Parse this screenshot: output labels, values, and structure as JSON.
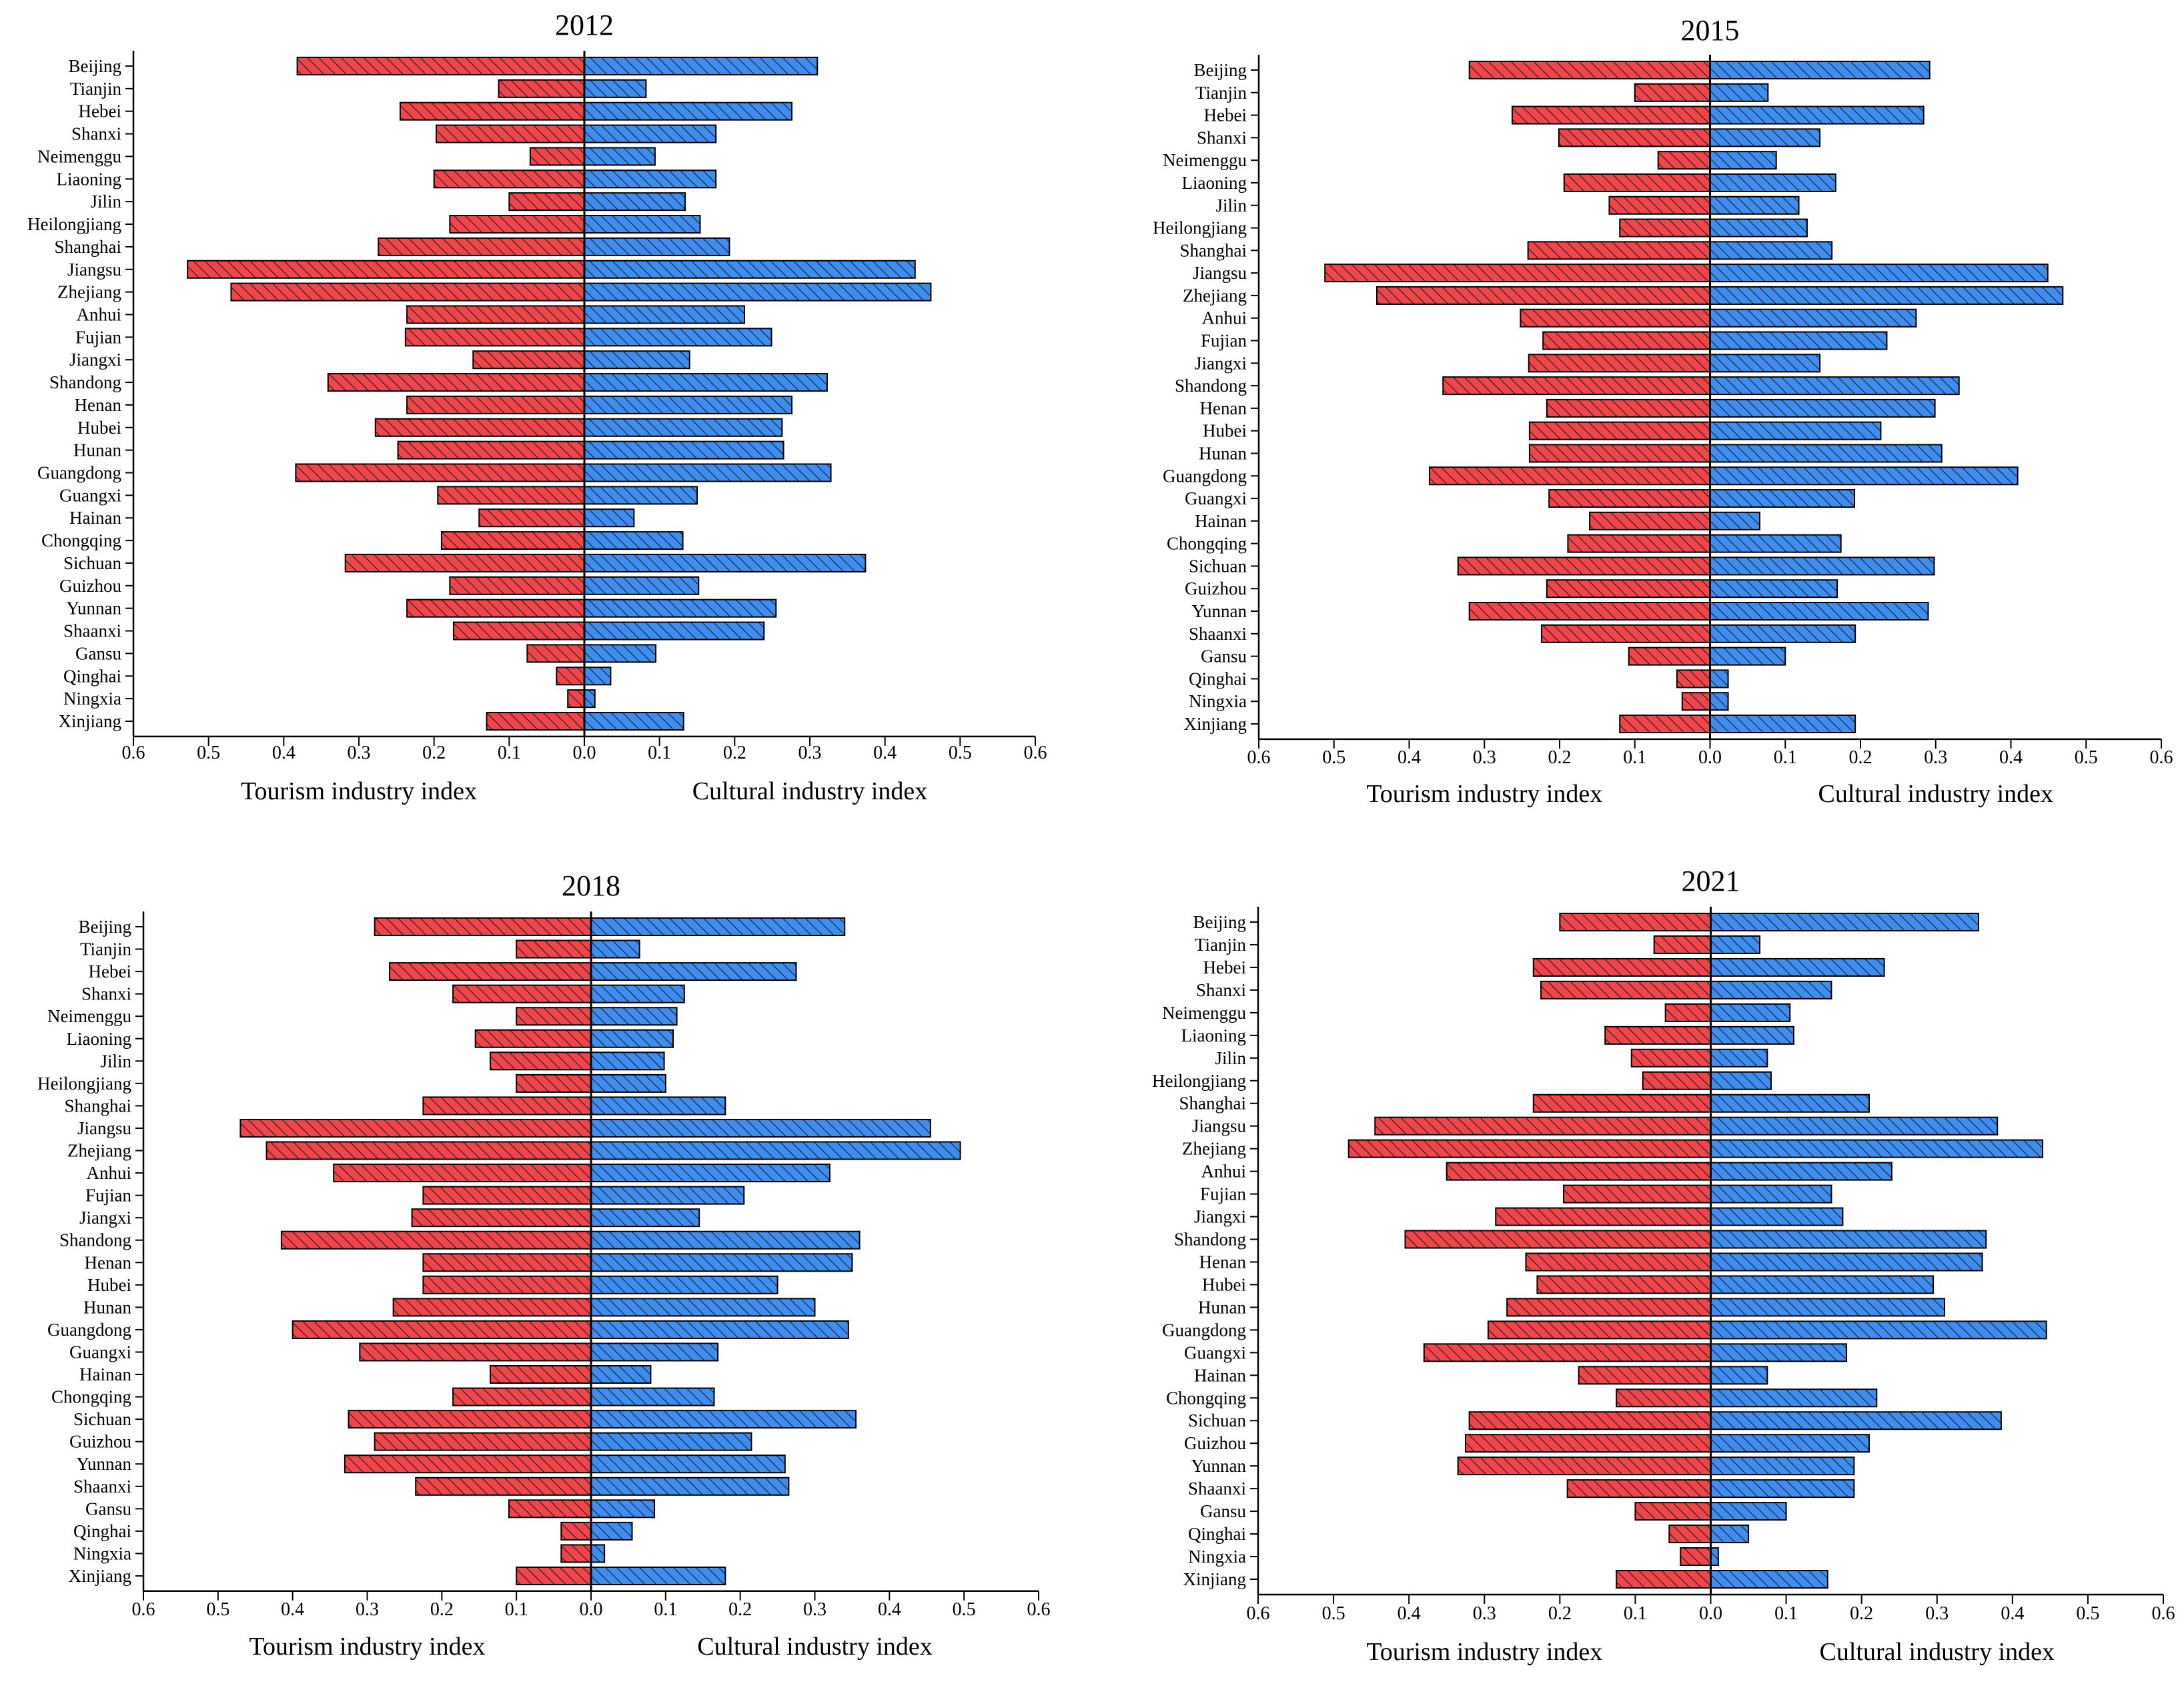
{
  "colors": {
    "tourism": "#f0454a",
    "cultural": "#3e8ef1",
    "outline": "#000000",
    "hatch": "#1a1a1a"
  },
  "chart_data": [
    {
      "type": "bar",
      "title": "2012",
      "categories": [
        "Beijing",
        "Tianjin",
        "Hebei",
        "Shanxi",
        "Neimenggu",
        "Liaoning",
        "Jilin",
        "Heilongjiang",
        "Shanghai",
        "Jiangsu",
        "Zhejiang",
        "Anhui",
        "Fujian",
        "Jiangxi",
        "Shandong",
        "Henan",
        "Hubei",
        "Hunan",
        "Guangdong",
        "Guangxi",
        "Hainan",
        "Chongqing",
        "Sichuan",
        "Guizhou",
        "Yunnan",
        "Shaanxi",
        "Gansu",
        "Qinghai",
        "Ningxia",
        "Xinjiang"
      ],
      "series": [
        {
          "name": "Tourism industry index",
          "values": [
            0.382,
            0.114,
            0.245,
            0.197,
            0.072,
            0.2,
            0.1,
            0.179,
            0.274,
            0.528,
            0.47,
            0.236,
            0.238,
            0.148,
            0.341,
            0.236,
            0.278,
            0.248,
            0.384,
            0.195,
            0.14,
            0.19,
            0.318,
            0.179,
            0.236,
            0.174,
            0.076,
            0.037,
            0.022,
            0.13
          ]
        },
        {
          "name": "Cultural industry index",
          "values": [
            0.31,
            0.082,
            0.276,
            0.175,
            0.094,
            0.175,
            0.134,
            0.154,
            0.193,
            0.44,
            0.461,
            0.213,
            0.249,
            0.14,
            0.323,
            0.276,
            0.263,
            0.265,
            0.328,
            0.15,
            0.066,
            0.131,
            0.374,
            0.152,
            0.255,
            0.239,
            0.095,
            0.035,
            0.014,
            0.132
          ]
        }
      ],
      "xticks": [
        "0.6",
        "0.5",
        "0.4",
        "0.3",
        "0.2",
        "0.1",
        "0.0",
        "0.1",
        "0.2",
        "0.3",
        "0.4",
        "0.5",
        "0.6"
      ],
      "xlabel_left": "Tourism industry index",
      "xlabel_right": "Cultural industry index",
      "xlim": [
        -0.6,
        0.6
      ]
    },
    {
      "type": "bar",
      "title": "2015",
      "categories": [
        "Beijing",
        "Tianjin",
        "Hebei",
        "Shanxi",
        "Neimenggu",
        "Liaoning",
        "Jilin",
        "Heilongjiang",
        "Shanghai",
        "Jiangsu",
        "Zhejiang",
        "Anhui",
        "Fujian",
        "Jiangxi",
        "Shandong",
        "Henan",
        "Hubei",
        "Hunan",
        "Guangdong",
        "Guangxi",
        "Hainan",
        "Chongqing",
        "Sichuan",
        "Guizhou",
        "Yunnan",
        "Shaanxi",
        "Gansu",
        "Qinghai",
        "Ningxia",
        "Xinjiang"
      ],
      "series": [
        {
          "name": "Tourism industry index",
          "values": [
            0.32,
            0.1,
            0.263,
            0.201,
            0.069,
            0.194,
            0.134,
            0.12,
            0.242,
            0.512,
            0.443,
            0.252,
            0.222,
            0.241,
            0.355,
            0.217,
            0.24,
            0.24,
            0.373,
            0.214,
            0.16,
            0.189,
            0.335,
            0.217,
            0.32,
            0.224,
            0.108,
            0.044,
            0.037,
            0.12
          ]
        },
        {
          "name": "Cultural industry index",
          "values": [
            0.292,
            0.077,
            0.284,
            0.146,
            0.088,
            0.167,
            0.118,
            0.129,
            0.162,
            0.449,
            0.469,
            0.274,
            0.235,
            0.146,
            0.331,
            0.299,
            0.227,
            0.308,
            0.409,
            0.192,
            0.066,
            0.174,
            0.298,
            0.169,
            0.29,
            0.193,
            0.1,
            0.024,
            0.024,
            0.193
          ]
        }
      ],
      "xticks": [
        "0.6",
        "0.5",
        "0.4",
        "0.3",
        "0.2",
        "0.1",
        "0.0",
        "0.1",
        "0.2",
        "0.3",
        "0.4",
        "0.5",
        "0.6"
      ],
      "xlabel_left": "Tourism industry index",
      "xlabel_right": "Cultural industry index",
      "xlim": [
        -0.6,
        0.6
      ]
    },
    {
      "type": "bar",
      "title": "2018",
      "categories": [
        "Beijing",
        "Tianjin",
        "Hebei",
        "Shanxi",
        "Neimenggu",
        "Liaoning",
        "Jilin",
        "Heilongjiang",
        "Shanghai",
        "Jiangsu",
        "Zhejiang",
        "Anhui",
        "Fujian",
        "Jiangxi",
        "Shandong",
        "Henan",
        "Hubei",
        "Hunan",
        "Guangdong",
        "Guangxi",
        "Hainan",
        "Chongqing",
        "Sichuan",
        "Guizhou",
        "Yunnan",
        "Shaanxi",
        "Gansu",
        "Qinghai",
        "Ningxia",
        "Xinjiang"
      ],
      "series": [
        {
          "name": "Tourism industry index",
          "values": [
            0.29,
            0.1,
            0.27,
            0.185,
            0.1,
            0.155,
            0.135,
            0.1,
            0.225,
            0.47,
            0.435,
            0.345,
            0.225,
            0.24,
            0.415,
            0.225,
            0.225,
            0.265,
            0.4,
            0.31,
            0.135,
            0.185,
            0.325,
            0.29,
            0.33,
            0.235,
            0.11,
            0.04,
            0.04,
            0.1
          ]
        },
        {
          "name": "Cultural industry index",
          "values": [
            0.34,
            0.065,
            0.275,
            0.125,
            0.115,
            0.11,
            0.098,
            0.1,
            0.18,
            0.455,
            0.495,
            0.32,
            0.205,
            0.145,
            0.36,
            0.35,
            0.25,
            0.3,
            0.345,
            0.17,
            0.08,
            0.165,
            0.355,
            0.215,
            0.26,
            0.265,
            0.085,
            0.055,
            0.018,
            0.18
          ]
        }
      ],
      "xticks": [
        "0.6",
        "0.5",
        "0.4",
        "0.3",
        "0.2",
        "0.1",
        "0.0",
        "0.1",
        "0.2",
        "0.3",
        "0.4",
        "0.5",
        "0.6"
      ],
      "xlabel_left": "Tourism industry index",
      "xlabel_right": "Cultural industry index",
      "xlim": [
        -0.6,
        0.6
      ]
    },
    {
      "type": "bar",
      "title": "2021",
      "categories": [
        "Beijing",
        "Tianjin",
        "Hebei",
        "Shanxi",
        "Neimenggu",
        "Liaoning",
        "Jilin",
        "Heilongjiang",
        "Shanghai",
        "Jiangsu",
        "Zhejiang",
        "Anhui",
        "Fujian",
        "Jiangxi",
        "Shandong",
        "Henan",
        "Hubei",
        "Hunan",
        "Guangdong",
        "Guangxi",
        "Hainan",
        "Chongqing",
        "Sichuan",
        "Guizhou",
        "Yunnan",
        "Shaanxi",
        "Gansu",
        "Qinghai",
        "Ningxia",
        "Xinjiang"
      ],
      "series": [
        {
          "name": "Tourism industry index",
          "values": [
            0.2,
            0.075,
            0.235,
            0.225,
            0.06,
            0.14,
            0.105,
            0.09,
            0.235,
            0.445,
            0.48,
            0.35,
            0.195,
            0.285,
            0.405,
            0.245,
            0.23,
            0.27,
            0.295,
            0.38,
            0.175,
            0.125,
            0.32,
            0.325,
            0.335,
            0.19,
            0.1,
            0.055,
            0.04,
            0.125
          ]
        },
        {
          "name": "Cultural industry index",
          "values": [
            0.355,
            0.065,
            0.23,
            0.16,
            0.105,
            0.11,
            0.075,
            0.08,
            0.21,
            0.38,
            0.44,
            0.24,
            0.16,
            0.175,
            0.365,
            0.36,
            0.295,
            0.31,
            0.445,
            0.18,
            0.075,
            0.22,
            0.385,
            0.21,
            0.19,
            0.19,
            0.1,
            0.05,
            0.01,
            0.155
          ]
        }
      ],
      "xticks": [
        "0.6",
        "0.5",
        "0.4",
        "0.3",
        "0.2",
        "0.1",
        "0.0",
        "0.1",
        "0.2",
        "0.3",
        "0.4",
        "0.5",
        "0.6"
      ],
      "xlabel_left": "Tourism industry index",
      "xlabel_right": "Cultural industry index",
      "xlim": [
        -0.6,
        0.6
      ]
    }
  ]
}
